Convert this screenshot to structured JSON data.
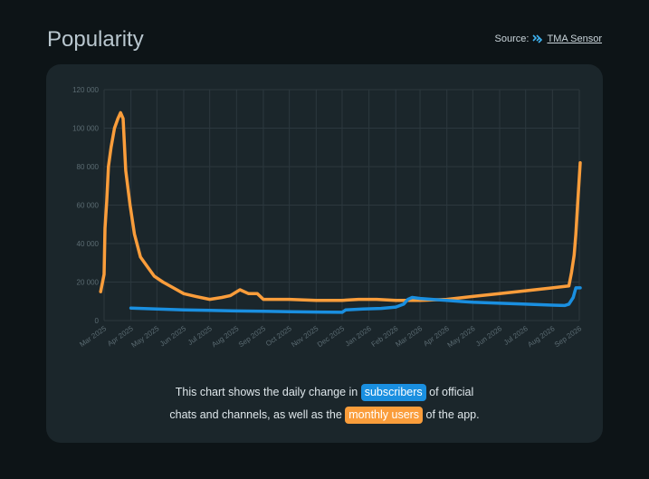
{
  "header": {
    "title": "Popularity",
    "source_prefix": "Source:",
    "source_link": "TMA Sensor"
  },
  "caption": {
    "line1_pre": "This chart shows the daily change in ",
    "subscribers_label": "subscribers",
    "line1_post": " of official",
    "line2_pre": "chats and channels, as well as the ",
    "monthly_users_label": "monthly users",
    "line2_post": " of the app."
  },
  "chart_data": {
    "type": "line",
    "title": "",
    "xlabel": "",
    "ylabel": "",
    "ylim": [
      0,
      120000
    ],
    "yticks": [
      0,
      20000,
      40000,
      60000,
      80000,
      100000,
      120000
    ],
    "ytick_labels": [
      "0",
      "20 000",
      "40 000",
      "60 000",
      "80 000",
      "100 000",
      "120 000"
    ],
    "xlim": [
      "2025-03-01",
      "2026-09-01"
    ],
    "xtick_labels": [
      "Mar 2025",
      "Apr 2025",
      "May 2025",
      "Jun 2025",
      "Jul 2025",
      "Aug 2025",
      "Sep 2025",
      "Oct 2025",
      "Nov 2025",
      "Dec 2025",
      "Jan 2026",
      "Feb 2026",
      "Mar 2026",
      "Apr 2026",
      "May 2026",
      "Jun 2026",
      "Jul 2026",
      "Aug 2026",
      "Sep 2026"
    ],
    "grid": true,
    "colors": {
      "subscribers": "#1a8fe0",
      "monthly_users": "#fa9d3b"
    },
    "series": [
      {
        "key": "monthly_users",
        "points": [
          [
            "2025-02-25",
            15000
          ],
          [
            "2025-03-01",
            24000
          ],
          [
            "2025-03-02",
            48000
          ],
          [
            "2025-03-04",
            62000
          ],
          [
            "2025-03-06",
            80000
          ],
          [
            "2025-03-09",
            90000
          ],
          [
            "2025-03-13",
            100000
          ],
          [
            "2025-03-17",
            105000
          ],
          [
            "2025-03-20",
            108000
          ],
          [
            "2025-03-23",
            105000
          ],
          [
            "2025-03-26",
            78000
          ],
          [
            "2025-03-31",
            60000
          ],
          [
            "2025-04-05",
            45000
          ],
          [
            "2025-04-12",
            33000
          ],
          [
            "2025-04-20",
            28000
          ],
          [
            "2025-04-28",
            23000
          ],
          [
            "2025-05-08",
            20000
          ],
          [
            "2025-05-20",
            17000
          ],
          [
            "2025-06-01",
            14000
          ],
          [
            "2025-06-15",
            12500
          ],
          [
            "2025-07-01",
            11000
          ],
          [
            "2025-07-15",
            12000
          ],
          [
            "2025-07-25",
            13000
          ],
          [
            "2025-08-05",
            16000
          ],
          [
            "2025-08-15",
            14000
          ],
          [
            "2025-08-25",
            14000
          ],
          [
            "2025-09-01",
            11000
          ],
          [
            "2025-09-15",
            11000
          ],
          [
            "2025-10-01",
            11000
          ],
          [
            "2025-11-01",
            10500
          ],
          [
            "2025-12-01",
            10500
          ],
          [
            "2025-12-20",
            11000
          ],
          [
            "2026-01-10",
            11000
          ],
          [
            "2026-02-01",
            10500
          ],
          [
            "2026-03-01",
            10500
          ],
          [
            "2026-04-01",
            11000
          ],
          [
            "2026-05-01",
            12500
          ],
          [
            "2026-06-01",
            14000
          ],
          [
            "2026-07-01",
            15500
          ],
          [
            "2026-08-01",
            17000
          ],
          [
            "2026-08-20",
            18000
          ],
          [
            "2026-08-23",
            25000
          ],
          [
            "2026-08-26",
            34000
          ],
          [
            "2026-08-28",
            45000
          ],
          [
            "2026-08-30",
            60000
          ],
          [
            "2026-09-02",
            82000
          ]
        ]
      },
      {
        "key": "subscribers",
        "points": [
          [
            "2025-04-01",
            6500
          ],
          [
            "2025-05-01",
            6000
          ],
          [
            "2025-06-01",
            5500
          ],
          [
            "2025-07-01",
            5300
          ],
          [
            "2025-08-01",
            5000
          ],
          [
            "2025-09-01",
            4800
          ],
          [
            "2025-10-01",
            4600
          ],
          [
            "2025-11-01",
            4400
          ],
          [
            "2025-12-01",
            4300
          ],
          [
            "2025-12-05",
            5500
          ],
          [
            "2025-12-25",
            6000
          ],
          [
            "2026-01-15",
            6300
          ],
          [
            "2026-02-01",
            7000
          ],
          [
            "2026-02-10",
            8500
          ],
          [
            "2026-02-15",
            11000
          ],
          [
            "2026-02-20",
            12000
          ],
          [
            "2026-03-01",
            11500
          ],
          [
            "2026-03-15",
            11000
          ],
          [
            "2026-04-01",
            10500
          ],
          [
            "2026-04-15",
            10000
          ],
          [
            "2026-05-01",
            9500
          ],
          [
            "2026-06-01",
            9000
          ],
          [
            "2026-07-01",
            8500
          ],
          [
            "2026-08-01",
            8000
          ],
          [
            "2026-08-15",
            7800
          ],
          [
            "2026-08-20",
            8500
          ],
          [
            "2026-08-25",
            12000
          ],
          [
            "2026-08-28",
            17000
          ],
          [
            "2026-09-02",
            17000
          ]
        ]
      }
    ]
  }
}
